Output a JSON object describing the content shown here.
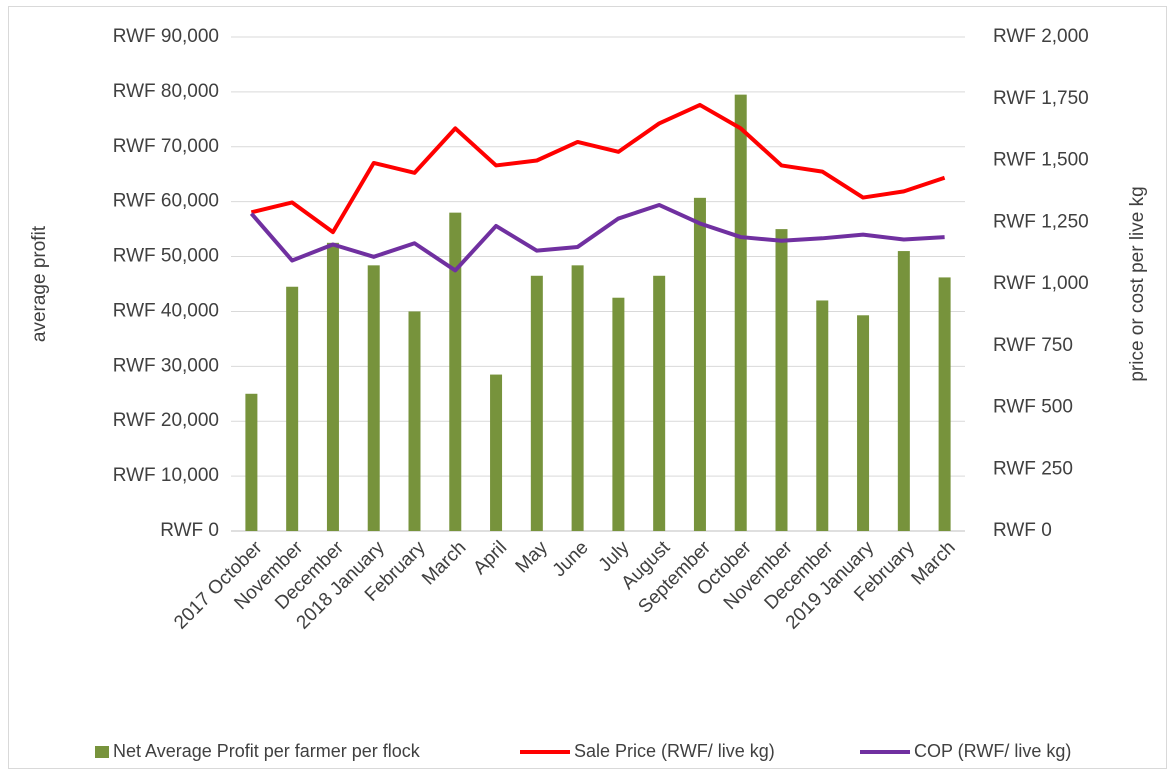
{
  "chart_data": {
    "type": "bar-line",
    "categories": [
      "2017 October",
      "November",
      "December",
      "2018 January",
      "February",
      "March",
      "April",
      "May",
      "June",
      "July",
      "August",
      "September",
      "October",
      "November",
      "December",
      "2019 January",
      "February",
      "March"
    ],
    "ylabel": "average profit",
    "y2label": "price or cost per live kg",
    "ylim": [
      0,
      90000
    ],
    "yticks": [
      {
        "value": 0,
        "label": "RWF 0"
      },
      {
        "value": 10000,
        "label": "RWF 10,000"
      },
      {
        "value": 20000,
        "label": "RWF 20,000"
      },
      {
        "value": 30000,
        "label": "RWF 30,000"
      },
      {
        "value": 40000,
        "label": "RWF 40,000"
      },
      {
        "value": 50000,
        "label": "RWF 50,000"
      },
      {
        "value": 60000,
        "label": "RWF 60,000"
      },
      {
        "value": 70000,
        "label": "RWF 70,000"
      },
      {
        "value": 80000,
        "label": "RWF 80,000"
      },
      {
        "value": 90000,
        "label": "RWF 90,000"
      }
    ],
    "y2lim": [
      0,
      2000
    ],
    "y2ticks": [
      {
        "value": 0,
        "label": "RWF 0"
      },
      {
        "value": 250,
        "label": "RWF 250"
      },
      {
        "value": 500,
        "label": "RWF 500"
      },
      {
        "value": 750,
        "label": "RWF 750"
      },
      {
        "value": 1000,
        "label": "RWF 1,000"
      },
      {
        "value": 1250,
        "label": "RWF 1,250"
      },
      {
        "value": 1500,
        "label": "RWF 1,500"
      },
      {
        "value": 1750,
        "label": "RWF 1,750"
      },
      {
        "value": 2000,
        "label": "RWF 2,000"
      }
    ],
    "grid": true,
    "legend": "bottom",
    "series": [
      {
        "name": "Net Average Profit per farmer per flock",
        "type": "bar",
        "color": "#77933c",
        "values": [
          25000,
          44500,
          52500,
          48400,
          40000,
          58000,
          28500,
          46500,
          48400,
          42500,
          46500,
          60700,
          79500,
          55000,
          42000,
          39300,
          51000,
          46200
        ]
      },
      {
        "name": "Sale Price (RWF/ live kg)",
        "type": "line",
        "axis": "y2",
        "color": "#ff0000",
        "values": [
          1290,
          1330,
          1210,
          1490,
          1450,
          1630,
          1480,
          1500,
          1575,
          1535,
          1650,
          1725,
          1630,
          1480,
          1455,
          1350,
          1375,
          1430
        ]
      },
      {
        "name": "COP (RWF/ live kg)",
        "type": "line",
        "axis": "y2",
        "color": "#7030a0",
        "values": [
          1285,
          1095,
          1160,
          1110,
          1165,
          1055,
          1235,
          1135,
          1150,
          1265,
          1320,
          1245,
          1190,
          1175,
          1185,
          1200,
          1180,
          1190
        ]
      }
    ]
  }
}
